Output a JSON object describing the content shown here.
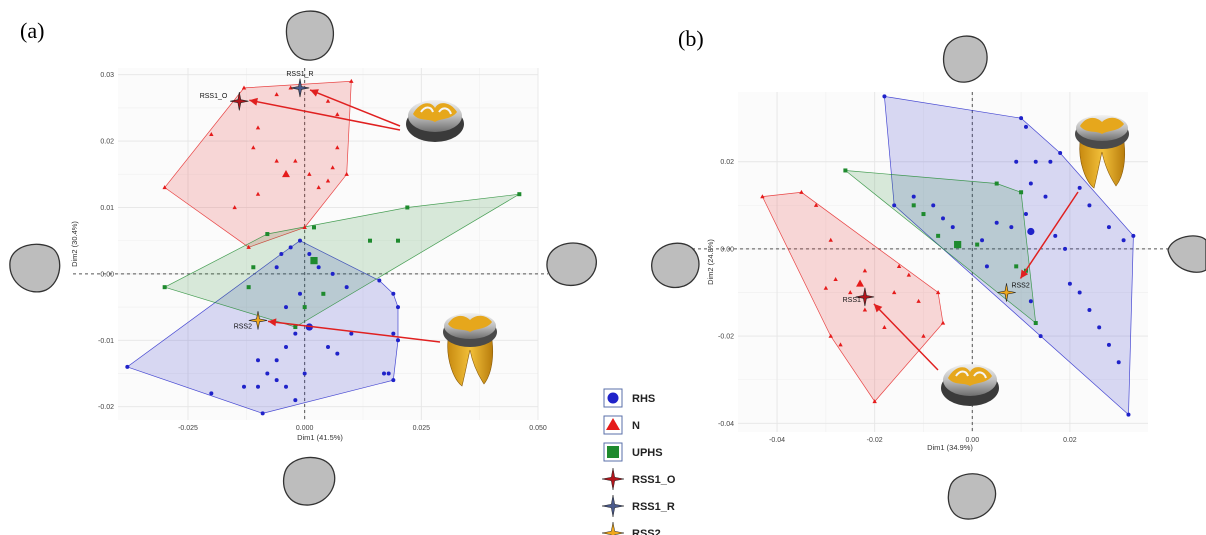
{
  "colors": {
    "RHS": "#1f22c9",
    "N": "#e51b1b",
    "UPHS": "#1e8a2e",
    "RSS1_O": "#b3141b",
    "RSS1_R": "#4a5a8c",
    "RSS2": "#f0a81c",
    "outline_shape": "#bdbdbd",
    "tooth_enamel": "#d8d8d8",
    "tooth_root": "#e0a820"
  },
  "chart_data": [
    {
      "type": "scatter",
      "panel_label": "(a)",
      "xlabel": "Dim1 (41.5%)",
      "ylabel": "Dim2 (30.4%)",
      "xlim": [
        -0.04,
        0.05
      ],
      "ylim": [
        -0.022,
        0.031
      ],
      "x_ticks": [
        -0.025,
        0.0,
        0.025,
        0.05
      ],
      "x_tick_labels": [
        "-0.025",
        "0.000",
        "0.025",
        "0.050"
      ],
      "y_ticks": [
        -0.02,
        -0.01,
        0.0,
        0.01,
        0.02,
        0.03
      ],
      "y_tick_labels": [
        "-0.02",
        "-0.01",
        "0.00",
        "0.01",
        "0.02",
        "0.03"
      ],
      "grid": true,
      "series": [
        {
          "name": "RHS",
          "marker": "circle",
          "color": "#1f22c9",
          "points": [
            [
              -0.002,
              -0.019
            ],
            [
              -0.004,
              -0.017
            ],
            [
              -0.006,
              -0.016
            ],
            [
              -0.01,
              -0.017
            ],
            [
              -0.008,
              -0.015
            ],
            [
              -0.01,
              -0.013
            ],
            [
              -0.006,
              -0.013
            ],
            [
              -0.004,
              -0.011
            ],
            [
              -0.002,
              -0.009
            ],
            [
              0.005,
              -0.011
            ],
            [
              0.007,
              -0.012
            ],
            [
              0.01,
              -0.009
            ],
            [
              0.017,
              -0.015
            ],
            [
              0.018,
              -0.015
            ],
            [
              0.019,
              -0.016
            ],
            [
              0.02,
              -0.01
            ],
            [
              0.019,
              -0.009
            ],
            [
              0.02,
              -0.005
            ],
            [
              0.019,
              -0.003
            ],
            [
              0.016,
              -0.001
            ],
            [
              0.009,
              -0.002
            ],
            [
              0.006,
              0.0
            ],
            [
              0.003,
              0.001
            ],
            [
              0.001,
              0.003
            ],
            [
              -0.001,
              0.005
            ],
            [
              -0.003,
              0.004
            ],
            [
              -0.005,
              0.003
            ],
            [
              -0.006,
              0.001
            ],
            [
              -0.004,
              -0.005
            ],
            [
              -0.001,
              -0.003
            ],
            [
              -0.013,
              -0.017
            ],
            [
              -0.02,
              -0.018
            ],
            [
              -0.038,
              -0.014
            ],
            [
              -0.009,
              -0.021
            ],
            [
              0.0,
              -0.015
            ]
          ],
          "centroid": [
            0.001,
            -0.008
          ]
        },
        {
          "name": "N",
          "marker": "triangle",
          "color": "#e51b1b",
          "points": [
            [
              -0.03,
              0.013
            ],
            [
              -0.02,
              0.021
            ],
            [
              -0.01,
              0.022
            ],
            [
              -0.006,
              0.027
            ],
            [
              -0.003,
              0.028
            ],
            [
              0.005,
              0.026
            ],
            [
              0.007,
              0.024
            ],
            [
              0.007,
              0.019
            ],
            [
              0.006,
              0.016
            ],
            [
              0.005,
              0.014
            ],
            [
              0.003,
              0.013
            ],
            [
              0.001,
              0.015
            ],
            [
              -0.002,
              0.017
            ],
            [
              -0.006,
              0.017
            ],
            [
              -0.011,
              0.019
            ],
            [
              -0.01,
              0.012
            ],
            [
              -0.015,
              0.01
            ],
            [
              -0.012,
              0.004
            ],
            [
              0.0,
              0.007
            ],
            [
              0.009,
              0.015
            ],
            [
              -0.013,
              0.028
            ],
            [
              0.01,
              0.029
            ]
          ],
          "centroid": [
            -0.004,
            0.015
          ]
        },
        {
          "name": "UPHS",
          "marker": "square",
          "color": "#1e8a2e",
          "points": [
            [
              -0.03,
              -0.002
            ],
            [
              -0.012,
              -0.002
            ],
            [
              -0.011,
              0.001
            ],
            [
              -0.008,
              0.006
            ],
            [
              0.002,
              0.007
            ],
            [
              0.014,
              0.005
            ],
            [
              0.02,
              0.005
            ],
            [
              0.022,
              0.01
            ],
            [
              0.046,
              0.012
            ],
            [
              0.004,
              -0.003
            ],
            [
              0.0,
              -0.005
            ],
            [
              -0.002,
              -0.008
            ]
          ],
          "centroid": [
            0.002,
            0.002
          ]
        },
        {
          "name": "RSS1_O",
          "marker": "star4",
          "color": "#b3141b",
          "label": "RSS1_O",
          "points": [
            [
              -0.014,
              0.026
            ]
          ]
        },
        {
          "name": "RSS1_R",
          "marker": "star4",
          "color": "#4a5a8c",
          "label": "RSS1_R",
          "points": [
            [
              -0.001,
              0.028
            ]
          ]
        },
        {
          "name": "RSS2",
          "marker": "star4",
          "color": "#f0a81c",
          "label": "RSS2",
          "points": [
            [
              -0.01,
              -0.007
            ]
          ]
        }
      ]
    },
    {
      "type": "scatter",
      "panel_label": "(b)",
      "xlabel": "Dim1 (34.9%)",
      "ylabel": "Dim2 (24.8%)",
      "xlim": [
        -0.048,
        0.036
      ],
      "ylim": [
        -0.042,
        0.036
      ],
      "x_ticks": [
        -0.04,
        -0.02,
        0.0,
        0.02
      ],
      "x_tick_labels": [
        "-0.04",
        "-0.02",
        "0.00",
        "0.02"
      ],
      "y_ticks": [
        -0.04,
        -0.02,
        0.0,
        0.02
      ],
      "y_tick_labels": [
        "-0.04",
        "-0.02",
        "0.00",
        "0.02"
      ],
      "grid": true,
      "series": [
        {
          "name": "RHS",
          "marker": "circle",
          "color": "#1f22c9",
          "points": [
            [
              -0.018,
              0.035
            ],
            [
              -0.016,
              0.01
            ],
            [
              -0.012,
              0.012
            ],
            [
              -0.008,
              0.01
            ],
            [
              -0.006,
              0.007
            ],
            [
              -0.004,
              0.005
            ],
            [
              0.002,
              0.002
            ],
            [
              0.005,
              0.006
            ],
            [
              0.008,
              0.005
            ],
            [
              0.011,
              0.008
            ],
            [
              0.012,
              0.015
            ],
            [
              0.013,
              0.02
            ],
            [
              0.015,
              0.012
            ],
            [
              0.017,
              0.003
            ],
            [
              0.019,
              0.0
            ],
            [
              0.02,
              -0.008
            ],
            [
              0.022,
              -0.01
            ],
            [
              0.024,
              -0.014
            ],
            [
              0.026,
              -0.018
            ],
            [
              0.028,
              -0.022
            ],
            [
              0.03,
              -0.026
            ],
            [
              0.032,
              -0.038
            ],
            [
              0.033,
              0.003
            ],
            [
              0.031,
              0.002
            ],
            [
              0.028,
              0.005
            ],
            [
              0.024,
              0.01
            ],
            [
              0.022,
              0.014
            ],
            [
              0.018,
              0.022
            ],
            [
              0.016,
              0.02
            ],
            [
              0.011,
              0.028
            ],
            [
              0.01,
              0.03
            ],
            [
              0.009,
              0.02
            ],
            [
              0.012,
              -0.012
            ],
            [
              0.014,
              -0.02
            ],
            [
              0.003,
              -0.004
            ]
          ],
          "centroid": [
            0.012,
            0.004
          ]
        },
        {
          "name": "N",
          "marker": "triangle",
          "color": "#e51b1b",
          "points": [
            [
              -0.043,
              0.012
            ],
            [
              -0.035,
              0.013
            ],
            [
              -0.032,
              0.01
            ],
            [
              -0.029,
              0.002
            ],
            [
              -0.028,
              -0.007
            ],
            [
              -0.029,
              -0.02
            ],
            [
              -0.027,
              -0.022
            ],
            [
              -0.025,
              -0.01
            ],
            [
              -0.022,
              -0.005
            ],
            [
              -0.022,
              -0.014
            ],
            [
              -0.02,
              -0.035
            ],
            [
              -0.018,
              -0.018
            ],
            [
              -0.016,
              -0.01
            ],
            [
              -0.015,
              -0.004
            ],
            [
              -0.013,
              -0.006
            ],
            [
              -0.011,
              -0.012
            ],
            [
              -0.01,
              -0.02
            ],
            [
              -0.006,
              -0.017
            ],
            [
              -0.007,
              -0.01
            ],
            [
              -0.03,
              -0.009
            ]
          ],
          "centroid": [
            -0.023,
            -0.008
          ]
        },
        {
          "name": "UPHS",
          "marker": "square",
          "color": "#1e8a2e",
          "points": [
            [
              -0.026,
              0.018
            ],
            [
              -0.012,
              0.01
            ],
            [
              -0.01,
              0.008
            ],
            [
              -0.007,
              0.003
            ],
            [
              0.001,
              0.001
            ],
            [
              0.005,
              0.015
            ],
            [
              0.01,
              0.013
            ],
            [
              0.011,
              -0.005
            ],
            [
              0.013,
              -0.017
            ],
            [
              0.009,
              -0.004
            ]
          ],
          "centroid": [
            -0.003,
            0.001
          ]
        },
        {
          "name": "RSS1",
          "marker": "star4",
          "color": "#b3141b",
          "label": "RSS1",
          "points": [
            [
              -0.022,
              -0.011
            ]
          ]
        },
        {
          "name": "RSS2",
          "marker": "star4",
          "color": "#f0a81c",
          "label": "RSS2",
          "points": [
            [
              0.007,
              -0.01
            ]
          ]
        }
      ]
    }
  ],
  "legend": {
    "items": [
      {
        "label": "RHS",
        "marker": "circle",
        "color": "#1f22c9"
      },
      {
        "label": "N",
        "marker": "triangle",
        "color": "#e51b1b"
      },
      {
        "label": "UPHS",
        "marker": "square",
        "color": "#1e8a2e"
      },
      {
        "label": "RSS1_O",
        "marker": "star4",
        "color": "#b3141b"
      },
      {
        "label": "RSS1_R",
        "marker": "star4",
        "color": "#4a5a8c"
      },
      {
        "label": "RSS2",
        "marker": "star4",
        "color": "#f0a81c"
      }
    ]
  }
}
